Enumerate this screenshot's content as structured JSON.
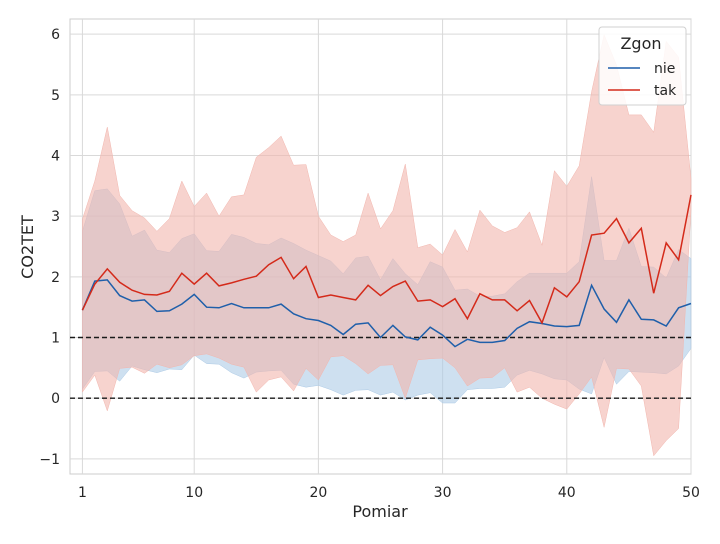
{
  "chart_data": {
    "type": "line",
    "xlabel": "Pomiar",
    "ylabel": "CO2TET",
    "xlim": [
      0,
      50
    ],
    "ylim": [
      -1.25,
      6.25
    ],
    "xticks": [
      "1",
      "10",
      "20",
      "30",
      "40",
      "50"
    ],
    "xtick_values": [
      1,
      10,
      20,
      30,
      40,
      50
    ],
    "yticks": [
      "−1",
      "0",
      "1",
      "2",
      "3",
      "4",
      "5",
      "6"
    ],
    "ytick_values": [
      -1,
      0,
      1,
      2,
      3,
      4,
      5,
      6
    ],
    "grid": true,
    "reference_lines": [
      0,
      1
    ],
    "legend": {
      "title": "Zgon",
      "placement": "top-right"
    },
    "x": [
      1,
      2,
      3,
      4,
      5,
      6,
      7,
      8,
      9,
      10,
      11,
      12,
      13,
      14,
      15,
      16,
      17,
      18,
      19,
      20,
      21,
      22,
      23,
      24,
      25,
      26,
      27,
      28,
      29,
      30,
      31,
      32,
      33,
      34,
      35,
      36,
      37,
      38,
      39,
      40,
      41,
      42,
      43,
      44,
      45,
      46,
      47,
      48,
      49,
      50
    ],
    "series": [
      {
        "name": "nie",
        "color": "#1f5faa",
        "band_color": "#aecbe6",
        "values": [
          1.45,
          1.93,
          1.95,
          1.69,
          1.6,
          1.62,
          1.43,
          1.44,
          1.55,
          1.71,
          1.5,
          1.49,
          1.56,
          1.49,
          1.49,
          1.49,
          1.55,
          1.39,
          1.31,
          1.28,
          1.2,
          1.05,
          1.22,
          1.24,
          1.0,
          1.2,
          1.01,
          0.96,
          1.17,
          1.04,
          0.85,
          0.97,
          0.92,
          0.92,
          0.95,
          1.15,
          1.26,
          1.23,
          1.19,
          1.18,
          1.2,
          1.86,
          1.47,
          1.25,
          1.62,
          1.3,
          1.29,
          1.19,
          1.49,
          1.56
        ],
        "upper": [
          2.75,
          3.42,
          3.45,
          3.2,
          2.67,
          2.77,
          2.44,
          2.4,
          2.63,
          2.71,
          2.43,
          2.42,
          2.7,
          2.65,
          2.55,
          2.53,
          2.64,
          2.55,
          2.44,
          2.35,
          2.26,
          2.05,
          2.31,
          2.34,
          1.95,
          2.3,
          2.05,
          1.87,
          2.25,
          2.16,
          1.78,
          1.8,
          1.68,
          1.68,
          1.72,
          1.92,
          2.06,
          2.06,
          2.06,
          2.06,
          2.25,
          3.65,
          2.27,
          2.27,
          2.8,
          2.17,
          2.16,
          1.98,
          2.45,
          2.3
        ],
        "lower": [
          0.15,
          0.44,
          0.45,
          0.28,
          0.53,
          0.47,
          0.42,
          0.48,
          0.47,
          0.71,
          0.57,
          0.56,
          0.42,
          0.33,
          0.43,
          0.45,
          0.46,
          0.23,
          0.18,
          0.21,
          0.14,
          0.05,
          0.13,
          0.14,
          0.05,
          0.1,
          -0.03,
          0.05,
          0.09,
          -0.08,
          -0.08,
          0.14,
          0.16,
          0.16,
          0.18,
          0.38,
          0.46,
          0.4,
          0.32,
          0.3,
          0.15,
          0.07,
          0.67,
          0.23,
          0.44,
          0.43,
          0.42,
          0.4,
          0.53,
          0.82
        ]
      },
      {
        "name": "tak",
        "color": "#d42a1a",
        "band_color": "#f2b6ae",
        "values": [
          1.45,
          1.88,
          2.13,
          1.91,
          1.78,
          1.71,
          1.7,
          1.76,
          2.06,
          1.88,
          2.06,
          1.85,
          1.9,
          1.96,
          2.01,
          2.2,
          2.32,
          1.97,
          2.17,
          1.66,
          1.7,
          1.66,
          1.62,
          1.86,
          1.69,
          1.84,
          1.93,
          1.6,
          1.62,
          1.51,
          1.64,
          1.31,
          1.72,
          1.62,
          1.62,
          1.44,
          1.61,
          1.24,
          1.82,
          1.67,
          1.92,
          2.69,
          2.72,
          2.96,
          2.56,
          2.8,
          1.73,
          2.56,
          2.28,
          3.35
        ],
        "upper": [
          2.95,
          3.58,
          4.47,
          3.34,
          3.09,
          2.97,
          2.75,
          2.96,
          3.58,
          3.16,
          3.38,
          3.0,
          3.32,
          3.35,
          3.97,
          4.13,
          4.32,
          3.84,
          3.85,
          3.0,
          2.69,
          2.58,
          2.69,
          3.38,
          2.79,
          3.09,
          3.86,
          2.48,
          2.54,
          2.36,
          2.78,
          2.41,
          3.1,
          2.84,
          2.73,
          2.81,
          3.07,
          2.52,
          3.75,
          3.49,
          3.83,
          5.05,
          5.99,
          5.49,
          4.67,
          4.67,
          4.38,
          5.88,
          5.62,
          3.62
        ],
        "lower": [
          0.1,
          0.38,
          -0.21,
          0.49,
          0.51,
          0.41,
          0.56,
          0.5,
          0.55,
          0.7,
          0.73,
          0.66,
          0.56,
          0.51,
          0.1,
          0.3,
          0.35,
          0.12,
          0.49,
          0.3,
          0.68,
          0.7,
          0.57,
          0.4,
          0.54,
          0.55,
          0.0,
          0.63,
          0.65,
          0.66,
          0.5,
          0.2,
          0.33,
          0.34,
          0.5,
          0.1,
          0.18,
          0.0,
          -0.1,
          -0.18,
          0.07,
          0.35,
          -0.48,
          0.49,
          0.48,
          0.2,
          -0.95,
          -0.7,
          -0.5,
          3.1
        ]
      }
    ]
  }
}
